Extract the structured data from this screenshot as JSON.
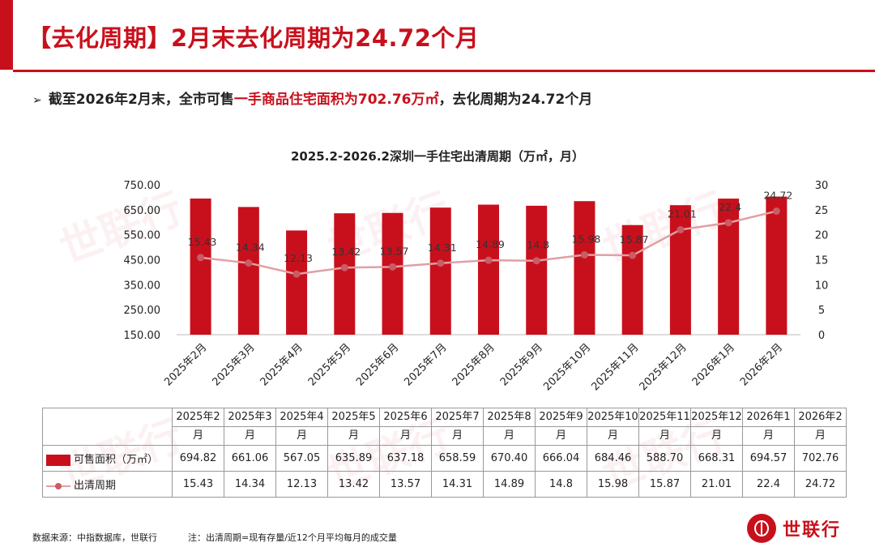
{
  "header": {
    "title": "【去化周期】2月末去化周期为24.72个月",
    "bullet_prefix": "截至2026年2月末，全市可售",
    "bullet_highlight": "一手商品住宅面积为702.76万㎡",
    "bullet_suffix": "，去化周期为24.72个月"
  },
  "brand": {
    "name": "世联行"
  },
  "footer": {
    "source": "数据来源：中指数据库，世联行",
    "note": "注：出清周期=现有存量/近12个月平均每月的成交量"
  },
  "table": {
    "row_labels": [
      "可售面积（万㎡）",
      "出清周期"
    ],
    "columns": [
      {
        "top": "2025年2",
        "bottom": "月"
      },
      {
        "top": "2025年3",
        "bottom": "月"
      },
      {
        "top": "2025年4",
        "bottom": "月"
      },
      {
        "top": "2025年5",
        "bottom": "月"
      },
      {
        "top": "2025年6",
        "bottom": "月"
      },
      {
        "top": "2025年7",
        "bottom": "月"
      },
      {
        "top": "2025年8",
        "bottom": "月"
      },
      {
        "top": "2025年9",
        "bottom": "月"
      },
      {
        "top": "2025年10",
        "bottom": "月"
      },
      {
        "top": "2025年11",
        "bottom": "月"
      },
      {
        "top": "2025年12",
        "bottom": "月"
      },
      {
        "top": "2026年1",
        "bottom": "月"
      },
      {
        "top": "2026年2",
        "bottom": "月"
      }
    ],
    "area_cells": [
      "694.82",
      "661.06",
      "567.05",
      "635.89",
      "637.18",
      "658.59",
      "670.40",
      "666.04",
      "684.46",
      "588.70",
      "668.31",
      "694.57",
      "702.76"
    ],
    "cycle_cells": [
      "15.43",
      "14.34",
      "12.13",
      "13.42",
      "13.57",
      "14.31",
      "14.89",
      "14.8",
      "15.98",
      "15.87",
      "21.01",
      "22.4",
      "24.72"
    ]
  },
  "chart_data": {
    "type": "bar",
    "title": "2025.2-2026.2深圳一手住宅出清周期（万㎡，月）",
    "categories": [
      "2025年2月",
      "2025年3月",
      "2025年4月",
      "2025年5月",
      "2025年6月",
      "2025年7月",
      "2025年8月",
      "2025年9月",
      "2025年10月",
      "2025年11月",
      "2025年12月",
      "2026年1月",
      "2026年2月"
    ],
    "series": [
      {
        "name": "可售面积（万㎡）",
        "type": "bar",
        "axis": "left",
        "color": "#c8101c",
        "values": [
          694.82,
          661.06,
          567.05,
          635.89,
          637.18,
          658.59,
          670.4,
          666.04,
          684.46,
          588.7,
          668.31,
          694.57,
          702.76
        ]
      },
      {
        "name": "出清周期",
        "type": "line",
        "axis": "right",
        "color": "#e0a0a4",
        "marker_color": "#c95c64",
        "values": [
          15.43,
          14.34,
          12.13,
          13.42,
          13.57,
          14.31,
          14.89,
          14.8,
          15.98,
          15.87,
          21.01,
          22.4,
          24.72
        ],
        "labels": [
          "15.43",
          "14.34",
          "12.13",
          "13.42",
          "13.57",
          "14.31",
          "14.89",
          "14.8",
          "15.98",
          "15.87",
          "21.01",
          "22.4",
          "24.72"
        ]
      }
    ],
    "left_axis": {
      "ylim": [
        150,
        750
      ],
      "ticks": [
        "150.00",
        "250.00",
        "350.00",
        "450.00",
        "550.00",
        "650.00",
        "750.00"
      ]
    },
    "right_axis": {
      "ylim": [
        0,
        30
      ],
      "ticks": [
        "0",
        "5",
        "10",
        "15",
        "20",
        "25",
        "30"
      ]
    },
    "legend": "table-below",
    "grid": false
  },
  "watermark": {
    "text": "世联行"
  }
}
